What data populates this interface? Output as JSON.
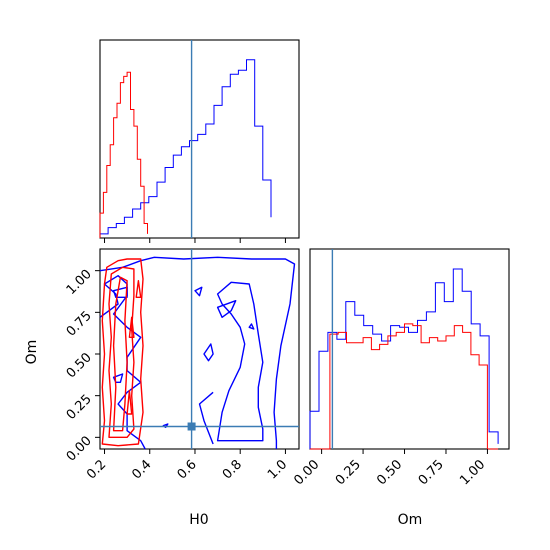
{
  "chart_data": {
    "type": "corner",
    "params": [
      "H0",
      "Om"
    ],
    "truths": {
      "H0": 0.585,
      "Om": 0.065
    },
    "ranges": {
      "H0": [
        0.18,
        1.06
      ],
      "Om": [
        -0.07,
        1.13
      ]
    },
    "ticks": {
      "H0": [
        "0.2",
        "0.4",
        "0.6",
        "0.8",
        "1.0"
      ],
      "Om": [
        "0.00",
        "0.25",
        "0.50",
        "0.75",
        "1.00"
      ]
    },
    "colors": {
      "truth": "#3b7cb4",
      "blue": "#0000ff",
      "red": "#ff0000"
    },
    "series": [
      {
        "color": "blue",
        "hist_H0": {
          "edges": [
            0.18,
            0.216,
            0.252,
            0.288,
            0.324,
            0.36,
            0.396,
            0.432,
            0.468,
            0.504,
            0.54,
            0.576,
            0.612,
            0.648,
            0.684,
            0.72,
            0.756,
            0.792,
            0.828,
            0.864,
            0.9,
            0.936
          ],
          "counts": [
            0.02,
            0.05,
            0.07,
            0.1,
            0.14,
            0.17,
            0.2,
            0.27,
            0.34,
            0.4,
            0.44,
            0.47,
            0.5,
            0.55,
            0.64,
            0.73,
            0.79,
            0.81,
            0.86,
            0.54,
            0.28,
            0.1
          ]
        },
        "hist_Om": {
          "edges": [
            -0.07,
            -0.016,
            0.038,
            0.092,
            0.146,
            0.2,
            0.254,
            0.308,
            0.362,
            0.416,
            0.47,
            0.524,
            0.578,
            0.632,
            0.686,
            0.74,
            0.794,
            0.848,
            0.902,
            0.956,
            1.01,
            1.064
          ],
          "counts": [
            0.22,
            0.57,
            0.68,
            0.64,
            0.86,
            0.78,
            0.72,
            0.67,
            0.63,
            0.72,
            0.71,
            0.68,
            0.75,
            0.8,
            0.97,
            0.86,
            1.05,
            0.92,
            0.73,
            0.66,
            0.1,
            0.03
          ]
        }
      },
      {
        "color": "red",
        "hist_H0": {
          "edges": [
            0.18,
            0.195,
            0.21,
            0.225,
            0.24,
            0.255,
            0.27,
            0.285,
            0.3,
            0.315,
            0.33,
            0.345,
            0.36,
            0.375,
            0.39
          ],
          "counts": [
            0.12,
            0.22,
            0.35,
            0.45,
            0.58,
            0.65,
            0.75,
            0.78,
            0.8,
            0.62,
            0.54,
            0.38,
            0.25,
            0.07,
            0.02
          ]
        },
        "hist_Om": {
          "edges": [
            -0.07,
            0.0,
            0.05,
            0.1,
            0.15,
            0.2,
            0.25,
            0.3,
            0.35,
            0.4,
            0.45,
            0.5,
            0.55,
            0.6,
            0.65,
            0.7,
            0.75,
            0.8,
            0.85,
            0.9,
            0.95,
            1.0,
            1.064
          ],
          "counts": [
            0.0,
            0.0,
            0.67,
            0.68,
            0.62,
            0.62,
            0.65,
            0.58,
            0.61,
            0.66,
            0.68,
            0.73,
            0.72,
            0.62,
            0.65,
            0.63,
            0.66,
            0.72,
            0.68,
            0.55,
            0.49,
            0.0,
            0.0
          ]
        }
      }
    ]
  }
}
